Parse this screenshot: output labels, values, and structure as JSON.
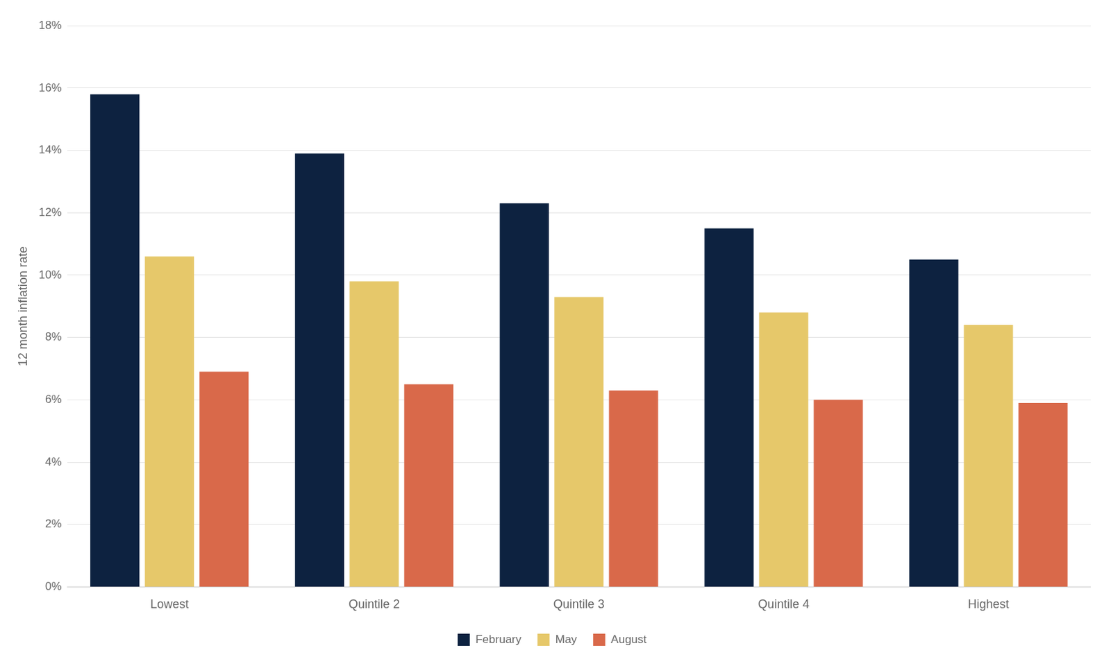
{
  "chart_data": {
    "type": "bar",
    "ylabel": "12 month inflation rate",
    "categories": [
      "Lowest",
      "Quintile 2",
      "Quintile 3",
      "Quintile 4",
      "Highest"
    ],
    "series": [
      {
        "name": "February",
        "color": "#0d2240",
        "values": [
          15.8,
          13.9,
          12.3,
          11.5,
          10.5
        ]
      },
      {
        "name": "May",
        "color": "#e6c86a",
        "values": [
          10.6,
          9.8,
          9.3,
          8.8,
          8.4
        ]
      },
      {
        "name": "August",
        "color": "#d9694a",
        "values": [
          6.9,
          6.5,
          6.3,
          6.0,
          5.9
        ]
      }
    ],
    "ylim": [
      0,
      18
    ],
    "yticks": [
      {
        "value": 0,
        "label": "0%"
      },
      {
        "value": 2,
        "label": "2%"
      },
      {
        "value": 4,
        "label": "4%"
      },
      {
        "value": 6,
        "label": "6%"
      },
      {
        "value": 8,
        "label": "8%"
      },
      {
        "value": 10,
        "label": "10%"
      },
      {
        "value": 12,
        "label": "12%"
      },
      {
        "value": 14,
        "label": "14%"
      },
      {
        "value": 16,
        "label": "16%"
      },
      {
        "value": 18,
        "label": "18%"
      }
    ],
    "grid": true,
    "legend": "bottom"
  }
}
